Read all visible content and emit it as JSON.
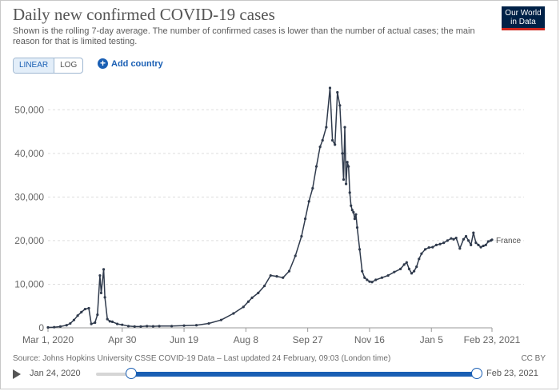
{
  "title": "Daily new confirmed COVID-19 cases",
  "subtitle": "Shown is the rolling 7-day average. The number of confirmed cases is lower than the number of actual cases; the main reason for that is limited testing.",
  "logo": {
    "line1": "Our World",
    "line2": "in Data"
  },
  "controls": {
    "linear_label": "LINEAR",
    "log_label": "LOG",
    "add_country_label": "Add country"
  },
  "source": "Source: Johns Hopkins University CSSE COVID-19 Data – Last updated 24 February, 09:03 (London time)",
  "license": "CC BY",
  "timeline": {
    "start_label": "Jan 24, 2020",
    "end_label": "Feb 23, 2021"
  },
  "colors": {
    "line": "#2f3a4c",
    "grid": "#dddddd",
    "accent": "#1a5fb4"
  },
  "chart_data": {
    "type": "line",
    "title": "Daily new confirmed COVID-19 cases",
    "xlabel": "",
    "ylabel": "",
    "x_range_days": [
      0,
      359
    ],
    "ylim": [
      0,
      55000
    ],
    "y_ticks": [
      0,
      10000,
      20000,
      30000,
      40000,
      50000
    ],
    "y_tick_labels": [
      "0",
      "10,000",
      "20,000",
      "30,000",
      "40,000",
      "50,000"
    ],
    "x_ticks": [
      0,
      60,
      110,
      160,
      210,
      260,
      310,
      359
    ],
    "x_tick_labels": [
      "Mar 1, 2020",
      "Apr 30",
      "Jun 19",
      "Aug 8",
      "Sep 27",
      "Nov 16",
      "Jan 5",
      "Feb 23, 2021"
    ],
    "series": [
      {
        "name": "France",
        "x": [
          0,
          5,
          10,
          15,
          18,
          21,
          24,
          27,
          30,
          33,
          35,
          38,
          40,
          42,
          43,
          45,
          46,
          48,
          50,
          52,
          56,
          60,
          65,
          70,
          75,
          80,
          85,
          90,
          100,
          110,
          120,
          130,
          140,
          150,
          158,
          162,
          165,
          170,
          175,
          180,
          185,
          190,
          195,
          200,
          205,
          208,
          211,
          214,
          217,
          220,
          222,
          225,
          228,
          230,
          232,
          234,
          236,
          238,
          239,
          240,
          241,
          242,
          243,
          244,
          245,
          246,
          247,
          248,
          249,
          250,
          252,
          254,
          256,
          258,
          260,
          262,
          265,
          270,
          275,
          280,
          285,
          288,
          290,
          292,
          294,
          296,
          298,
          300,
          302,
          305,
          308,
          311,
          314,
          317,
          320,
          323,
          326,
          328,
          330,
          333,
          336,
          338,
          340,
          342,
          344,
          346,
          348,
          350,
          352,
          354,
          356,
          358,
          359
        ],
        "values": [
          100,
          150,
          300,
          600,
          1000,
          1800,
          2800,
          3600,
          4300,
          4500,
          900,
          1200,
          3000,
          12000,
          8000,
          13400,
          7000,
          2000,
          1500,
          1400,
          900,
          700,
          400,
          300,
          300,
          400,
          350,
          400,
          400,
          500,
          600,
          1000,
          1800,
          3300,
          4800,
          6000,
          6900,
          8000,
          9600,
          12000,
          11800,
          11500,
          13000,
          16500,
          21000,
          25000,
          29000,
          32000,
          37000,
          41500,
          43000,
          46000,
          55000,
          43000,
          42000,
          54000,
          51000,
          40000,
          34000,
          46000,
          33000,
          38000,
          37000,
          31000,
          28000,
          27000,
          26500,
          25000,
          26000,
          23000,
          18000,
          13000,
          11500,
          11000,
          10600,
          10500,
          11000,
          11500,
          12000,
          12800,
          13500,
          14500,
          15000,
          13500,
          12500,
          13000,
          14000,
          15800,
          17000,
          18000,
          18400,
          18500,
          19000,
          19200,
          19500,
          20000,
          20500,
          20300,
          20600,
          18200,
          20300,
          21000,
          20000,
          19000,
          21800,
          19500,
          19000,
          18500,
          18800,
          19000,
          19800,
          20000,
          20200
        ]
      }
    ],
    "series_label": "France"
  }
}
